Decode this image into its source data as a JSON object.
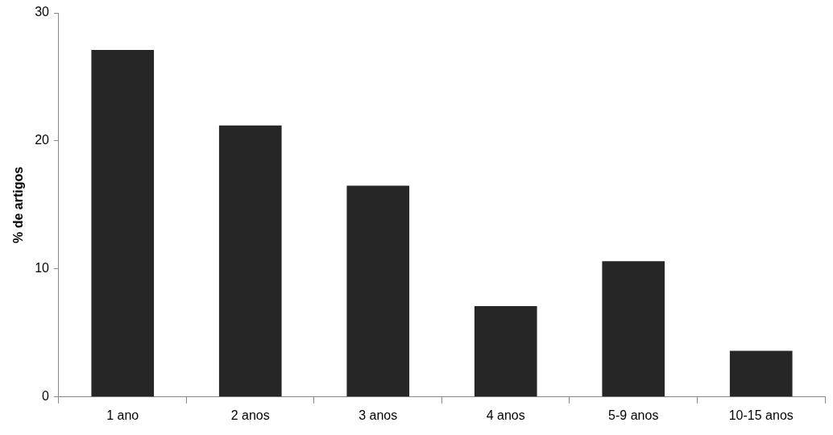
{
  "chart_data": {
    "type": "bar",
    "ylabel": "% de artigos",
    "categories": [
      "1 ano",
      "2 anos",
      "3 anos",
      "4 anos",
      "5-9 anos",
      "10-15 anos"
    ],
    "values": [
      27.1,
      21.2,
      16.5,
      7.1,
      10.6,
      3.6
    ],
    "color": "#262626",
    "ylim": [
      0,
      30
    ],
    "yticks": [
      0,
      10,
      20,
      30
    ]
  }
}
